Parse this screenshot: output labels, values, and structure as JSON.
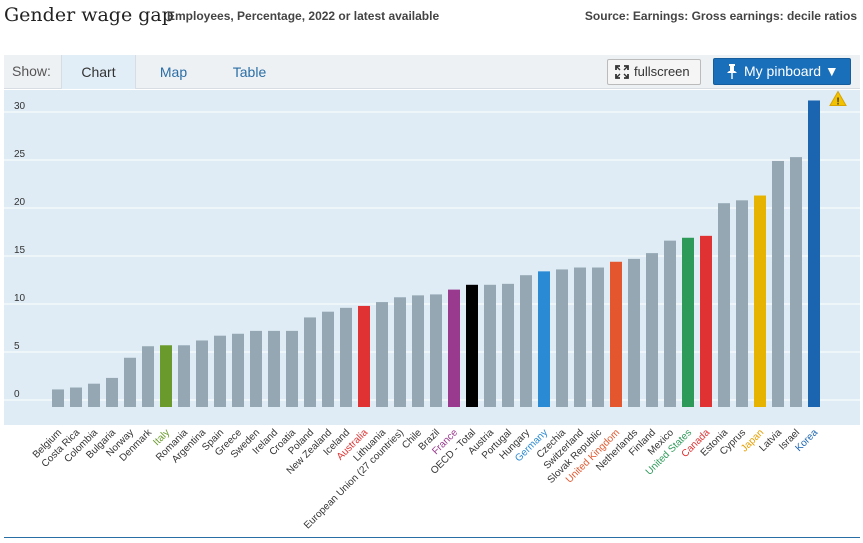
{
  "header": {
    "title": "Gender wage gap",
    "subtitle": "Employees, Percentage, 2022 or latest available",
    "source": "Source: Earnings: Gross earnings: decile ratios"
  },
  "toolbar": {
    "show_label": "Show:",
    "tabs": [
      {
        "label": "Chart",
        "active": true
      },
      {
        "label": "Map",
        "active": false
      },
      {
        "label": "Table",
        "active": false
      }
    ],
    "fullscreen_label": "fullscreen",
    "pinboard_label": "My pinboard ▼"
  },
  "colors": {
    "default_bar": "#94a7b3",
    "plot_background": "#dfecf5",
    "gridline": "#ffffff",
    "accent_blue": "#1a6fba",
    "warning": "#f2c200"
  },
  "chart_data": {
    "type": "bar",
    "title": "",
    "xlabel": "",
    "ylabel": "",
    "ylim": [
      -1.5,
      33
    ],
    "yticks": [
      0,
      5,
      10,
      15,
      20,
      25,
      30
    ],
    "grid": true,
    "warning_icon": "warning-icon",
    "categories": [
      "Belgium",
      "Costa Rica",
      "Colombia",
      "Bulgaria",
      "Norway",
      "Denmark",
      "Italy",
      "Romania",
      "Argentina",
      "Spain",
      "Greece",
      "Sweden",
      "Ireland",
      "Croatia",
      "Poland",
      "New Zealand",
      "Iceland",
      "Australia",
      "Lithuania",
      "European Union (27 countries)",
      "Chile",
      "Brazil",
      "France",
      "OECD - Total",
      "Austria",
      "Portugal",
      "Hungary",
      "Germany",
      "Czechia",
      "Switzerland",
      "Slovak Republic",
      "United Kingdom",
      "Netherlands",
      "Finland",
      "Mexico",
      "United States",
      "Canada",
      "Estonia",
      "Cyprus",
      "Japan",
      "Latvia",
      "Israel",
      "Korea"
    ],
    "values": [
      1.1,
      1.3,
      1.7,
      2.3,
      4.4,
      5.6,
      5.7,
      5.7,
      6.2,
      6.7,
      6.9,
      7.2,
      7.2,
      7.2,
      8.6,
      9.2,
      9.6,
      9.8,
      10.2,
      10.7,
      10.9,
      11.0,
      11.5,
      12.0,
      12.0,
      12.1,
      13.0,
      13.4,
      13.6,
      13.8,
      13.8,
      14.4,
      14.7,
      15.3,
      16.6,
      16.9,
      17.1,
      20.5,
      20.8,
      21.3,
      24.9,
      25.3,
      31.2
    ],
    "bar_colors": {
      "Italy": "#6a9a2b",
      "Australia": "#e03232",
      "France": "#9a3a8e",
      "OECD - Total": "#000000",
      "Germany": "#2a8ad4",
      "United Kingdom": "#e4572e",
      "United States": "#2e9a5a",
      "Canada": "#e03232",
      "Japan": "#e6b400",
      "Korea": "#1a64b0"
    },
    "label_colors": {
      "Italy": "#6a9a2b",
      "Australia": "#e03232",
      "France": "#9a3a8e",
      "Germany": "#2a8ad4",
      "United Kingdom": "#e4572e",
      "United States": "#2e9a5a",
      "Canada": "#e03232",
      "Japan": "#e6a000",
      "Korea": "#1a64b0"
    }
  }
}
